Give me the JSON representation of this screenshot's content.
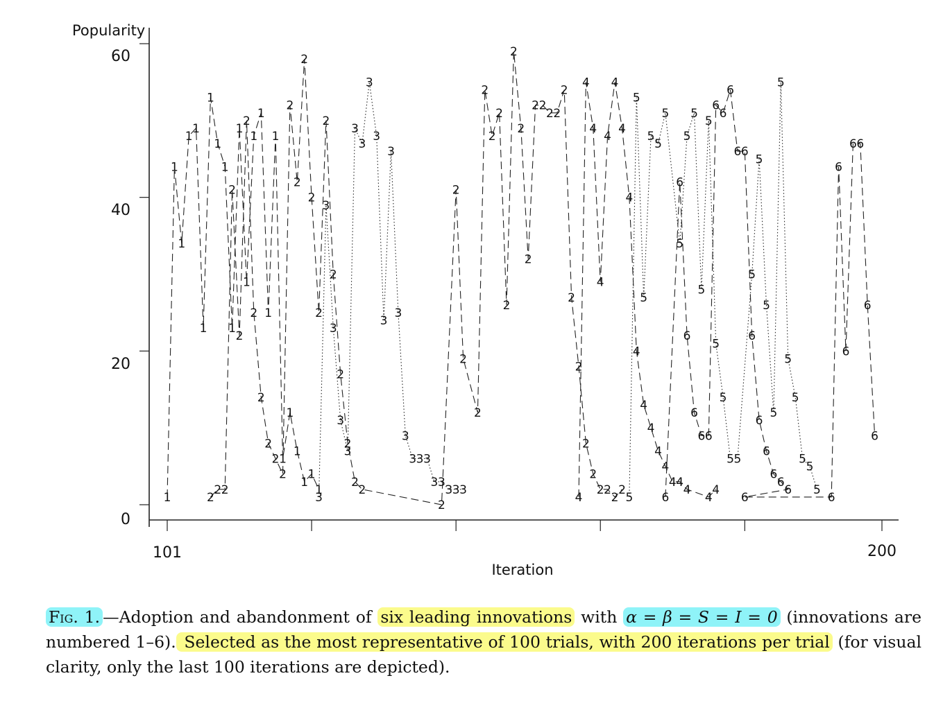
{
  "chart_data": {
    "type": "line",
    "ylabel": "Popularity",
    "xlabel": "Iteration",
    "x_tick_labels": [
      "101",
      "200"
    ],
    "y_tick_labels": [
      "0",
      "20",
      "40",
      "60"
    ],
    "xlim": [
      101,
      200
    ],
    "ylim": [
      0,
      60
    ],
    "grid": false,
    "legend": "none",
    "series": [
      {
        "label": "1",
        "style": "dashed",
        "points": [
          [
            101,
            1
          ],
          [
            102,
            44
          ],
          [
            103,
            34
          ],
          [
            104,
            48
          ],
          [
            105,
            49
          ],
          [
            106,
            23
          ],
          [
            107,
            53
          ],
          [
            108,
            47
          ],
          [
            109,
            44
          ],
          [
            110,
            23
          ],
          [
            111,
            49
          ],
          [
            112,
            29
          ],
          [
            113,
            48
          ],
          [
            114,
            51
          ],
          [
            115,
            25
          ],
          [
            116,
            48
          ],
          [
            117,
            6
          ],
          [
            118,
            12
          ],
          [
            119,
            7
          ],
          [
            120,
            3
          ],
          [
            121,
            4
          ],
          [
            122,
            2
          ]
        ]
      },
      {
        "label": "2",
        "style": "dashed",
        "points": [
          [
            107,
            1
          ],
          [
            108,
            2
          ],
          [
            109,
            2
          ],
          [
            110,
            41
          ],
          [
            111,
            22
          ],
          [
            112,
            50
          ],
          [
            113,
            25
          ],
          [
            114,
            14
          ],
          [
            115,
            8
          ],
          [
            116,
            6
          ],
          [
            117,
            4
          ],
          [
            118,
            52
          ],
          [
            119,
            42
          ],
          [
            120,
            58
          ],
          [
            121,
            40
          ],
          [
            122,
            25
          ],
          [
            123,
            50
          ],
          [
            124,
            30
          ],
          [
            125,
            17
          ],
          [
            126,
            8
          ],
          [
            127,
            3
          ],
          [
            128,
            2
          ],
          [
            139,
            0
          ],
          [
            141,
            41
          ],
          [
            142,
            19
          ],
          [
            144,
            12
          ],
          [
            145,
            54
          ],
          [
            146,
            48
          ],
          [
            147,
            51
          ],
          [
            148,
            26
          ],
          [
            149,
            59
          ],
          [
            150,
            49
          ],
          [
            151,
            32
          ],
          [
            152,
            52
          ],
          [
            153,
            52
          ],
          [
            154,
            51
          ],
          [
            155,
            51
          ],
          [
            156,
            54
          ],
          [
            157,
            27
          ],
          [
            158,
            18
          ],
          [
            159,
            8
          ],
          [
            160,
            4
          ],
          [
            161,
            2
          ],
          [
            162,
            2
          ],
          [
            163,
            1
          ],
          [
            164,
            2
          ]
        ]
      },
      {
        "label": "3",
        "style": "dotted",
        "points": [
          [
            122,
            1
          ],
          [
            123,
            39
          ],
          [
            124,
            23
          ],
          [
            125,
            11
          ],
          [
            126,
            7
          ],
          [
            127,
            49
          ],
          [
            128,
            47
          ],
          [
            129,
            55
          ],
          [
            130,
            48
          ],
          [
            131,
            24
          ],
          [
            132,
            46
          ],
          [
            133,
            25
          ],
          [
            134,
            9
          ],
          [
            135,
            6
          ],
          [
            136,
            6
          ],
          [
            137,
            6
          ],
          [
            138,
            3
          ],
          [
            139,
            3
          ],
          [
            140,
            2
          ],
          [
            141,
            2
          ],
          [
            142,
            2
          ]
        ]
      },
      {
        "label": "4",
        "style": "dashed",
        "points": [
          [
            158,
            1
          ],
          [
            159,
            55
          ],
          [
            160,
            49
          ],
          [
            161,
            29
          ],
          [
            162,
            48
          ],
          [
            163,
            55
          ],
          [
            164,
            49
          ],
          [
            165,
            40
          ],
          [
            166,
            20
          ],
          [
            167,
            13
          ],
          [
            168,
            10
          ],
          [
            169,
            7
          ],
          [
            170,
            5
          ],
          [
            171,
            3
          ],
          [
            172,
            3
          ],
          [
            173,
            2
          ],
          [
            176,
            1
          ],
          [
            177,
            2
          ]
        ]
      },
      {
        "label": "5",
        "style": "dotted",
        "points": [
          [
            165,
            1
          ],
          [
            166,
            53
          ],
          [
            167,
            27
          ],
          [
            168,
            48
          ],
          [
            169,
            47
          ],
          [
            170,
            51
          ],
          [
            172,
            34
          ],
          [
            173,
            48
          ],
          [
            174,
            51
          ],
          [
            175,
            28
          ],
          [
            176,
            50
          ],
          [
            177,
            21
          ],
          [
            178,
            14
          ],
          [
            179,
            6
          ],
          [
            180,
            6
          ],
          [
            182,
            30
          ],
          [
            183,
            45
          ],
          [
            184,
            26
          ],
          [
            185,
            12
          ],
          [
            186,
            55
          ],
          [
            187,
            19
          ],
          [
            188,
            14
          ],
          [
            189,
            6
          ],
          [
            190,
            5
          ],
          [
            191,
            2
          ]
        ]
      },
      {
        "label": "6",
        "style": "dashed",
        "points": [
          [
            170,
            1
          ],
          [
            172,
            42
          ],
          [
            173,
            22
          ],
          [
            174,
            12
          ],
          [
            175,
            9
          ],
          [
            176,
            9
          ],
          [
            177,
            52
          ],
          [
            178,
            51
          ],
          [
            179,
            54
          ],
          [
            180,
            46
          ],
          [
            181,
            46
          ],
          [
            182,
            22
          ],
          [
            183,
            11
          ],
          [
            184,
            7
          ],
          [
            185,
            4
          ],
          [
            186,
            3
          ],
          [
            187,
            2
          ],
          [
            181,
            1
          ],
          [
            193,
            1
          ],
          [
            194,
            44
          ],
          [
            195,
            20
          ],
          [
            196,
            47
          ],
          [
            197,
            47
          ],
          [
            198,
            26
          ],
          [
            199,
            9
          ]
        ]
      }
    ]
  },
  "caption": {
    "fig_label": "Fig. 1.",
    "text_1": "—Adoption and abandonment of ",
    "highlight_1": "six leading innovations",
    "text_2": " with ",
    "math": "α = β = S = I = 0",
    "text_3": " (innovations are numbered 1–6).",
    "highlight_2": " Selected as the most representative of 100 trials, with 200 iterations per trial",
    "text_4": " (for visual clarity, only the last 100 iterations are depicted)."
  },
  "colors": {
    "highlight_cyan": "#8ff3f8",
    "highlight_yellow": "#fbfb8c"
  }
}
